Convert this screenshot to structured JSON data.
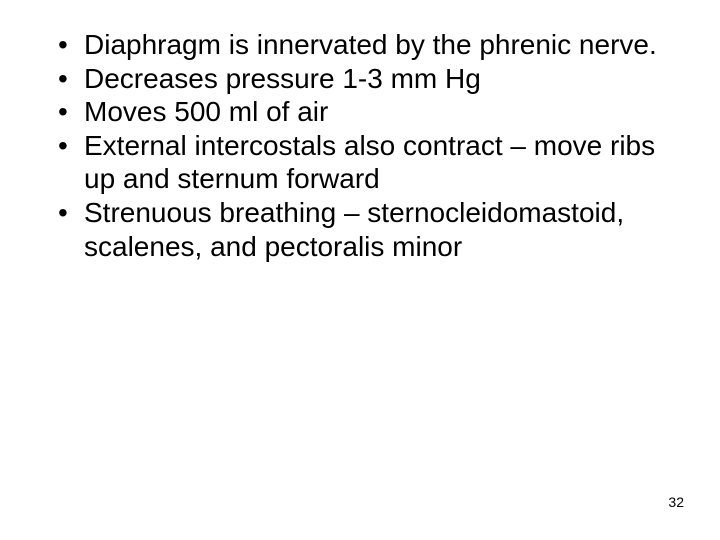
{
  "slide": {
    "bullets": [
      "Diaphragm is innervated by the phrenic nerve.",
      "Decreases pressure 1-3 mm Hg",
      "Moves 500 ml of air",
      "External intercostals also contract – move ribs up and sternum forward",
      "Strenuous breathing – sternocleidomastoid, scalenes, and pectoralis minor"
    ],
    "page_number": "32",
    "text_color": "#000000",
    "background_color": "#ffffff",
    "bullet_fontsize": 28,
    "pagenum_fontsize": 14
  }
}
